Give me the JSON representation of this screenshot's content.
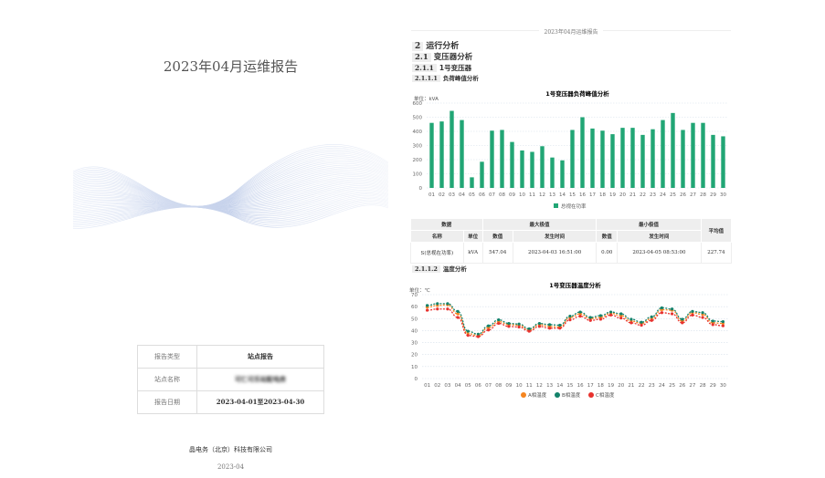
{
  "cover": {
    "title": "2023年04月运维报告",
    "rows": [
      {
        "label": "报告类型",
        "value": "站点报告"
      },
      {
        "label": "站点名称",
        "value": "可仁可乐站配电房"
      },
      {
        "label": "报告日期",
        "value": "2023-04-01至2023-04-30"
      }
    ],
    "company": "晶电务（北京）科技有限公司",
    "date": "2023-04"
  },
  "page_header": "2023年04月运维报告",
  "headings": [
    {
      "num": "2",
      "text": "运行分析"
    },
    {
      "num": "2.1",
      "text": "变压器分析"
    },
    {
      "num": "2.1.1",
      "text": "1号变压器"
    },
    {
      "num": "2.1.1.1",
      "text": "负荷峰值分析"
    },
    {
      "num": "2.1.1.2",
      "text": "温度分析"
    }
  ],
  "table": {
    "group_headers": [
      "数据",
      "最大极值",
      "最小极值",
      "平均值"
    ],
    "sub_headers": [
      "名称",
      "单位",
      "数值",
      "发生时间",
      "数值",
      "发生时间"
    ],
    "row": [
      "S(总视在功率)",
      "kVA",
      "547.04",
      "2023-04-03 16:51:00",
      "0.00",
      "2023-04-05 08:53:00",
      "227.74"
    ]
  },
  "chart_data": [
    {
      "type": "bar",
      "title": "1号变压器负荷峰值分析",
      "unit_label": "单位：kVA",
      "categories": [
        "01",
        "02",
        "03",
        "04",
        "05",
        "06",
        "07",
        "08",
        "09",
        "10",
        "11",
        "12",
        "13",
        "14",
        "15",
        "16",
        "17",
        "18",
        "19",
        "20",
        "21",
        "22",
        "23",
        "24",
        "25",
        "26",
        "27",
        "28",
        "29",
        "30"
      ],
      "ylim": [
        0,
        600
      ],
      "yticks": [
        0,
        100,
        200,
        300,
        400,
        500,
        600
      ],
      "grid": true,
      "legend": "bottom",
      "series": [
        {
          "name": "总视在功率",
          "color": "#21a675",
          "values": [
            460,
            470,
            545,
            480,
            75,
            185,
            405,
            410,
            325,
            265,
            255,
            295,
            215,
            195,
            410,
            500,
            420,
            405,
            380,
            425,
            425,
            375,
            415,
            480,
            530,
            410,
            460,
            460,
            375,
            365
          ]
        }
      ]
    },
    {
      "type": "line",
      "title": "1号变压器温度分析",
      "unit_label": "单位：℃",
      "categories": [
        "01",
        "02",
        "03",
        "04",
        "05",
        "06",
        "07",
        "08",
        "09",
        "10",
        "11",
        "12",
        "13",
        "14",
        "15",
        "16",
        "17",
        "18",
        "19",
        "20",
        "21",
        "22",
        "23",
        "24",
        "25",
        "26",
        "27",
        "28",
        "29",
        "30"
      ],
      "ylim": [
        0,
        70
      ],
      "yticks": [
        0,
        10,
        20,
        30,
        40,
        50,
        60,
        70
      ],
      "grid": true,
      "legend": "bottom",
      "series": [
        {
          "name": "A相温度",
          "color": "#f5851f",
          "values": [
            59.5,
            61,
            61.5,
            54,
            37.5,
            36,
            42.5,
            47.5,
            45,
            44.5,
            40.5,
            45,
            43.5,
            43,
            51,
            54,
            50,
            51,
            54.5,
            52.5,
            48,
            46,
            50,
            57.5,
            57,
            48,
            55,
            53.5,
            46.5,
            46
          ]
        },
        {
          "name": "B相温度",
          "color": "#13826a",
          "values": [
            61,
            62.5,
            62.5,
            56,
            39.5,
            37,
            44,
            49,
            46,
            45.5,
            41.5,
            46,
            45,
            44.5,
            52,
            55.5,
            51,
            52.5,
            55.5,
            54,
            49.5,
            47,
            51.5,
            59,
            58,
            49.5,
            56,
            55,
            48,
            47.5
          ]
        },
        {
          "name": "C相温度",
          "color": "#e8322e",
          "values": [
            57,
            58,
            58,
            51,
            36,
            35,
            40.5,
            46,
            43.5,
            43,
            39.5,
            43.5,
            42,
            42,
            49,
            52,
            48.5,
            49.5,
            53,
            50.5,
            46.5,
            44.5,
            48.5,
            55,
            54,
            46.5,
            53,
            51,
            45,
            44
          ]
        }
      ]
    }
  ]
}
